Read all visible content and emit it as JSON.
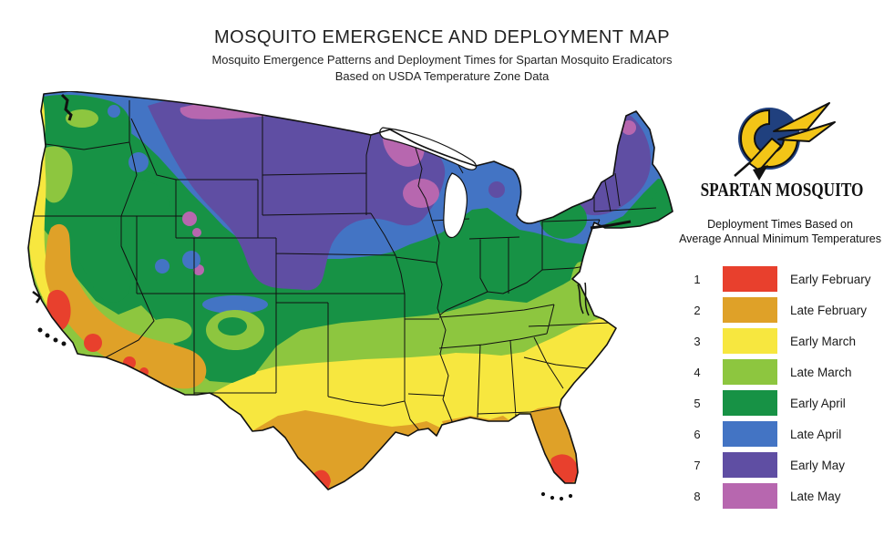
{
  "header": {
    "title": "MOSQUITO EMERGENCE AND DEPLOYMENT MAP",
    "subtitle_line1": "Mosquito Emergence Patterns and Deployment Times for Spartan Mosquito Eradicators",
    "subtitle_line2": "Based on USDA Temperature Zone Data"
  },
  "brand": {
    "name": "SPARTAN MOSQUITO",
    "logo_colors": {
      "navy": "#20407E",
      "gold": "#F3C517",
      "outline": "#111111"
    }
  },
  "legend": {
    "heading_line1": "Deployment Times Based on",
    "heading_line2": "Average Annual Minimum Temperatures",
    "items": [
      {
        "zone": "1",
        "label": "Early February",
        "color": "#E8402D"
      },
      {
        "zone": "2",
        "label": "Late February",
        "color": "#DFA128"
      },
      {
        "zone": "3",
        "label": "Early March",
        "color": "#F7E73F"
      },
      {
        "zone": "4",
        "label": "Late March",
        "color": "#8DC63F"
      },
      {
        "zone": "5",
        "label": "Early April",
        "color": "#179245"
      },
      {
        "zone": "6",
        "label": "Late April",
        "color": "#4374C4"
      },
      {
        "zone": "7",
        "label": "Early May",
        "color": "#5F4EA3"
      },
      {
        "zone": "8",
        "label": "Late May",
        "color": "#B767AF"
      }
    ]
  },
  "map": {
    "region": "Contiguous United States",
    "water_color": "#FFFFFF",
    "border_color": "#111111"
  }
}
